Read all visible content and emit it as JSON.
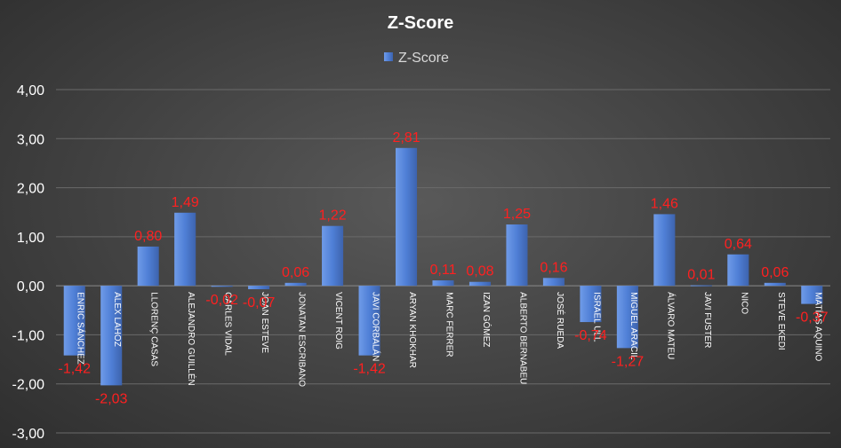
{
  "chart_data": {
    "type": "bar",
    "title": "Z-Score",
    "legend": {
      "position": "top",
      "entries": [
        "Z-Score"
      ]
    },
    "series": [
      {
        "name": "Z-Score",
        "values": [
          -1.42,
          -2.03,
          0.8,
          1.49,
          -0.02,
          -0.07,
          0.06,
          1.22,
          -1.42,
          2.81,
          0.11,
          0.08,
          1.25,
          0.16,
          -0.74,
          -1.27,
          1.46,
          0.01,
          0.64,
          0.06,
          -0.37
        ]
      }
    ],
    "categories": [
      "ENRIC SÁNCHEZ",
      "ALEX LAHOZ",
      "LLORENÇ CASAS",
      "ALEJANDRO GUILLÉN",
      "CARLES VIDAL",
      "JOAN ESTEVE",
      "JONATAN ESCRIBANO",
      "VICENT ROIG",
      "JAVI CORBALÁN",
      "ARYAN KHOKHAR",
      "MARC FERRER",
      "IZAN GÓMEZ",
      "ALBERTO BERNABEU",
      "JOSÉ RUEDA",
      "ISRAEL ULL",
      "MIGUEL ARACIL",
      "ÁLVARO MATEU",
      "JAVI FUSTER",
      "NICO",
      "STEVE EKEDI",
      "MATÍAS AQUINO"
    ],
    "data_labels": [
      "-1,42",
      "-2,03",
      "0,80",
      "1,49",
      "-0,02",
      "-0,07",
      "0,06",
      "1,22",
      "-1,42",
      "2,81",
      "0,11",
      "0,08",
      "1,25",
      "0,16",
      "-0,74",
      "-1,27",
      "1,46",
      "0,01",
      "0,64",
      "0,06",
      "-0,37"
    ],
    "yticks": [
      -3,
      -2,
      -1,
      0,
      1,
      2,
      3,
      4
    ],
    "ytick_labels": [
      "-3,00",
      "-2,00",
      "-1,00",
      "0,00",
      "1,00",
      "2,00",
      "3,00",
      "4,00"
    ],
    "ylim": [
      -3,
      4
    ],
    "grid": true,
    "colors": {
      "bar": "#4f7fd6",
      "bar_light": "#6f9be8",
      "bar_dark": "#3d63ad",
      "data_label": "#ff2020"
    }
  }
}
